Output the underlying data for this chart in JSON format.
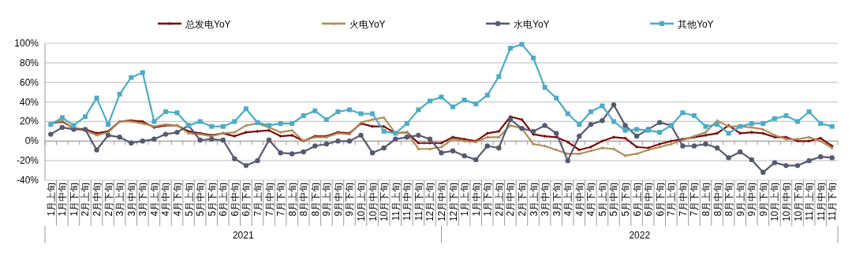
{
  "chart_data": {
    "type": "line",
    "categories": [
      "1月上旬",
      "1月中旬",
      "1月下旬",
      "2月上旬",
      "2月中旬",
      "2月下旬",
      "3月上旬",
      "3月中旬",
      "3月下旬",
      "4月上旬",
      "4月中旬",
      "4月下旬",
      "5月上旬",
      "5月中旬",
      "5月下旬",
      "6月上旬",
      "6月中旬",
      "6月下旬",
      "7月上旬",
      "7月中旬",
      "7月下旬",
      "8月上旬",
      "8月中旬",
      "8月下旬",
      "9月上旬",
      "9月中旬",
      "9月下旬",
      "10月上旬",
      "10月中旬",
      "10月下旬",
      "11月上旬",
      "11月中旬",
      "11月下旬",
      "12月上旬",
      "12月中旬",
      "12月下旬",
      "1月上旬",
      "1月中旬",
      "1月下旬",
      "2月上旬",
      "2月中旬",
      "2月下旬",
      "3月上旬",
      "3月中旬",
      "3月下旬",
      "4月上旬",
      "4月中旬",
      "4月下旬",
      "5月上旬",
      "5月中旬",
      "5月下旬",
      "6月上旬",
      "6月中旬",
      "6月下旬",
      "7月上旬",
      "7月中旬",
      "7月下旬",
      "8月上旬",
      "8月中旬",
      "8月下旬",
      "9月上旬",
      "9月中旬",
      "9月下旬",
      "10月上旬",
      "10月中旬",
      "10月下旬",
      "11月上旬",
      "11月中旬",
      "11月下旬"
    ],
    "series": [
      {
        "name": "总发电YoY",
        "color": "#7b0c0c",
        "marker": "cross",
        "values": [
          18,
          20,
          13,
          12,
          8,
          10,
          20,
          21,
          20,
          14,
          16,
          16,
          10,
          8,
          6,
          8,
          5,
          9,
          10,
          11,
          5,
          6,
          0,
          5,
          5,
          9,
          8,
          18,
          15,
          15,
          8,
          9,
          -2,
          -2,
          -2,
          4,
          2,
          0,
          8,
          10,
          25,
          22,
          7,
          5,
          4,
          -1,
          -9,
          -6,
          0,
          4,
          3,
          -6,
          -7,
          -3,
          0,
          2,
          4,
          6,
          8,
          16,
          8,
          9,
          8,
          4,
          4,
          0,
          0,
          3,
          -5
        ]
      },
      {
        "name": "火电YoY",
        "color": "#b08d57",
        "marker": "triangle",
        "values": [
          18,
          21,
          13,
          11,
          6,
          9,
          20,
          20,
          18,
          15,
          17,
          16,
          8,
          7,
          5,
          8,
          9,
          16,
          18,
          14,
          9,
          11,
          0,
          4,
          4,
          8,
          7,
          19,
          22,
          24,
          8,
          9,
          -8,
          -8,
          -6,
          2,
          0,
          -1,
          4,
          4,
          16,
          13,
          -3,
          -5,
          -9,
          -13,
          -13,
          -10,
          -7,
          -8,
          -15,
          -13,
          -9,
          -6,
          -3,
          1,
          5,
          9,
          21,
          15,
          15,
          14,
          12,
          6,
          2,
          2,
          4,
          0,
          -7
        ]
      },
      {
        "name": "水电YoY",
        "color": "#555a70",
        "marker": "circle",
        "values": [
          7,
          14,
          12,
          12,
          -9,
          6,
          4,
          -2,
          0,
          2,
          7,
          9,
          16,
          1,
          2,
          1,
          -18,
          -25,
          -20,
          1,
          -12,
          -13,
          -11,
          -5,
          -3,
          0,
          0,
          6,
          -12,
          -7,
          2,
          4,
          6,
          2,
          -12,
          -10,
          -15,
          -19,
          -5,
          -7,
          22,
          13,
          10,
          16,
          8,
          -20,
          5,
          17,
          21,
          37,
          16,
          5,
          12,
          19,
          16,
          -5,
          -5,
          -3,
          -7,
          -17,
          -11,
          -19,
          -32,
          -22,
          -25,
          -25,
          -20,
          -16,
          -17
        ]
      },
      {
        "name": "其他YoY",
        "color": "#4bacc6",
        "marker": "square",
        "values": [
          17,
          24,
          16,
          25,
          44,
          17,
          48,
          65,
          70,
          20,
          30,
          29,
          16,
          20,
          15,
          15,
          20,
          33,
          19,
          16,
          18,
          18,
          26,
          31,
          22,
          30,
          32,
          28,
          28,
          10,
          8,
          18,
          32,
          41,
          45,
          35,
          42,
          38,
          47,
          66,
          95,
          99,
          85,
          55,
          44,
          28,
          17,
          30,
          36,
          20,
          11,
          12,
          11,
          9,
          16,
          29,
          26,
          15,
          17,
          8,
          15,
          18,
          18,
          23,
          26,
          20,
          30,
          18,
          15
        ]
      }
    ],
    "ylim": [
      -40,
      100
    ],
    "yticks": [
      {
        "value": -40,
        "label": "-40%"
      },
      {
        "value": -20,
        "label": "-20%"
      },
      {
        "value": 0,
        "label": "0%"
      },
      {
        "value": 20,
        "label": "20%"
      },
      {
        "value": 40,
        "label": "40%"
      },
      {
        "value": 60,
        "label": "60%"
      },
      {
        "value": 80,
        "label": "80%"
      },
      {
        "value": 100,
        "label": "100%"
      }
    ],
    "grid": "y",
    "legend": "top",
    "annotations": [
      "2021",
      "2022"
    ]
  }
}
